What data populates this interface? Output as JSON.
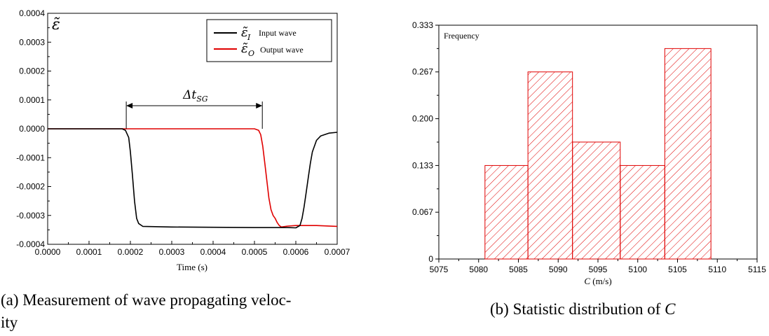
{
  "chart_data": [
    {
      "type": "line",
      "x_tick_labels": [
        "0.0000",
        "0.0001",
        "0.0002",
        "0.0003",
        "0.0004",
        "0.0005",
        "0.0006",
        "0.0007"
      ],
      "x_ticks": [
        0,
        0.0001,
        0.0002,
        0.0003,
        0.0004,
        0.0005,
        0.0006,
        0.0007
      ],
      "y_tick_labels": [
        "0.0004",
        "0.0003",
        "0.0002",
        "0.0001",
        "0.0000",
        "-0.0001",
        "-0.0002",
        "-0.0003",
        "-0.0004"
      ],
      "y_ticks": [
        0.0004,
        0.0003,
        0.0002,
        0.0001,
        0,
        -0.0001,
        -0.0002,
        -0.0003,
        -0.0004
      ],
      "xlim": [
        0,
        0.0007
      ],
      "ylim": [
        -0.0004,
        0.0004
      ],
      "xlabel": "Time (s)",
      "ylabel_symbol": "ε̃",
      "series": [
        {
          "name": "Input wave",
          "symbol": "ε̃",
          "subscript": "I",
          "color": "#000000",
          "x": [
            0,
            0.00018,
            0.000188,
            0.000196,
            0.0002,
            0.000205,
            0.00021,
            0.000215,
            0.00022,
            0.00023,
            0.0003,
            0.0004,
            0.0005,
            0.00058,
            0.0006,
            0.00061,
            0.000615,
            0.00062,
            0.000625,
            0.00063,
            0.000635,
            0.00064,
            0.00065,
            0.00066,
            0.00068,
            0.0007
          ],
          "y": [
            0,
            0,
            -5e-06,
            -3e-05,
            -8e-05,
            -0.00016,
            -0.00025,
            -0.00031,
            -0.000328,
            -0.000338,
            -0.00034,
            -0.000341,
            -0.000342,
            -0.000342,
            -0.000343,
            -0.000335,
            -0.00031,
            -0.00027,
            -0.00022,
            -0.00017,
            -0.00012,
            -8e-05,
            -4e-05,
            -2.5e-05,
            -1.5e-05,
            -1.2e-05
          ]
        },
        {
          "name": "Output wave",
          "symbol": "ε̃",
          "subscript": "O",
          "color": "#e00000",
          "x": [
            0,
            0.0005,
            0.00051,
            0.000515,
            0.00052,
            0.000525,
            0.00053,
            0.000535,
            0.00054,
            0.000545,
            0.00055,
            0.000555,
            0.00056,
            0.000565,
            0.00058,
            0.0006,
            0.00065,
            0.0007
          ],
          "y": [
            0,
            0,
            -5e-06,
            -2e-05,
            -6e-05,
            -0.00012,
            -0.00018,
            -0.00024,
            -0.00028,
            -0.0003,
            -0.00031,
            -0.000325,
            -0.000335,
            -0.00034,
            -0.000337,
            -0.000335,
            -0.000335,
            -0.000338
          ]
        }
      ],
      "annotation": {
        "label_main": "Δt",
        "label_sub": "SG",
        "x_start": 0.00019,
        "x_end": 0.000519,
        "y": 8e-05
      },
      "legend_position": "top-right",
      "grid": false
    },
    {
      "type": "bar",
      "x_tick_labels": [
        "5075",
        "5080",
        "5085",
        "5090",
        "5095",
        "5100",
        "5105",
        "5110",
        "5115"
      ],
      "x_ticks": [
        5075,
        5080,
        5085,
        5090,
        5095,
        5100,
        5105,
        5110,
        5115
      ],
      "y_tick_labels": [
        "0",
        "0.067",
        "0.133",
        "0.200",
        "0.267",
        "0.333"
      ],
      "y_ticks": [
        0,
        0.0667,
        0.1333,
        0.2,
        0.2667,
        0.3333
      ],
      "xlim": [
        5075,
        5115
      ],
      "ylim": [
        0,
        0.3333
      ],
      "xlabel_symbol": "C",
      "xlabel_unit": " (m/s)",
      "ylabel": "Frequency",
      "bars": [
        {
          "x_start": 5080.8,
          "x_end": 5086.2,
          "value": 0.1333
        },
        {
          "x_start": 5086.2,
          "x_end": 5091.8,
          "value": 0.2667
        },
        {
          "x_start": 5091.8,
          "x_end": 5097.8,
          "value": 0.1667
        },
        {
          "x_start": 5097.8,
          "x_end": 5103.4,
          "value": 0.1333
        },
        {
          "x_start": 5103.4,
          "x_end": 5109.2,
          "value": 0.3
        }
      ],
      "bar_color": "#e00000",
      "hatch": "diagonal",
      "grid": false
    }
  ],
  "captions": {
    "a_line1": "(a) Measurement of wave propagating veloc-",
    "a_line2": "ity",
    "b_text": "(b) Statistic distribution of ",
    "b_symbol": "C"
  }
}
